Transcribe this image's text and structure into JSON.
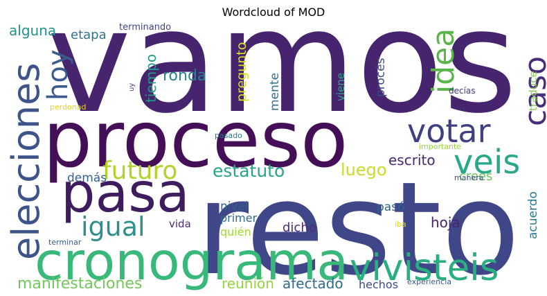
{
  "chart_data": {
    "type": "wordcloud",
    "title": "Wordcloud of MOD",
    "words": [
      {
        "text": "vamos",
        "color": "#46246e"
      },
      {
        "text": "resto",
        "color": "#3f4788"
      },
      {
        "text": "proceso",
        "color": "#440f56"
      },
      {
        "text": "cronograma",
        "color": "#38b97a"
      },
      {
        "text": "pasa",
        "color": "#3e1c5e"
      },
      {
        "text": "elecciones",
        "color": "#3e5389"
      },
      {
        "text": "vivisteis",
        "color": "#29ae80"
      },
      {
        "text": "veis",
        "color": "#28a789"
      },
      {
        "text": "votar",
        "color": "#3f3f82"
      },
      {
        "text": "caso",
        "color": "#472d7b"
      },
      {
        "text": "idea",
        "color": "#5ab54b"
      },
      {
        "text": "hoy",
        "color": "#3b5b8e"
      },
      {
        "text": "futuro",
        "color": "#b2d22c"
      },
      {
        "text": "igual",
        "color": "#2f8f8d"
      },
      {
        "text": "estatuto",
        "color": "#27a585"
      },
      {
        "text": "luego",
        "color": "#c7dd23"
      },
      {
        "text": "manifestaciones",
        "color": "#72c75a"
      },
      {
        "text": "afectado",
        "color": "#2e6b8f"
      },
      {
        "text": "reunión",
        "color": "#91d63d"
      },
      {
        "text": "escrito",
        "color": "#482673"
      },
      {
        "text": "crees",
        "color": "#6bc35c"
      },
      {
        "text": "dicho",
        "color": "#4b2a7a"
      },
      {
        "text": "hoja",
        "color": "#482172"
      },
      {
        "text": "nivel",
        "color": "#33608d"
      },
      {
        "text": "primer",
        "color": "#31688e"
      },
      {
        "text": "quién",
        "color": "#a5d639"
      },
      {
        "text": "pasó",
        "color": "#34618d"
      },
      {
        "text": "acuerdo",
        "color": "#2a788e"
      },
      {
        "text": "hechos",
        "color": "#3c4a88"
      },
      {
        "text": "vida",
        "color": "#472a79"
      },
      {
        "text": "demás",
        "color": "#34608d"
      },
      {
        "text": "alguna",
        "color": "#21918c"
      },
      {
        "text": "etapa",
        "color": "#31718e"
      },
      {
        "text": "ronda",
        "color": "#27848e"
      },
      {
        "text": "tiempo",
        "color": "#229c87"
      },
      {
        "text": "pregunto",
        "color": "#cfe21c"
      },
      {
        "text": "mente",
        "color": "#2e6f8e"
      },
      {
        "text": "procés",
        "color": "#3d4d8a"
      },
      {
        "text": "viene",
        "color": "#30a786"
      },
      {
        "text": "traduce",
        "color": "#83cb54"
      },
      {
        "text": "terminando",
        "color": "#414488"
      },
      {
        "text": "decías",
        "color": "#453781"
      },
      {
        "text": "importante",
        "color": "#96d63a"
      },
      {
        "text": "pasado",
        "color": "#2b758e"
      },
      {
        "text": "manera",
        "color": "#3d4e8a"
      },
      {
        "text": "iba",
        "color": "#ead21f"
      },
      {
        "text": "perdonad",
        "color": "#e3d51a"
      },
      {
        "text": "terminar",
        "color": "#3b5a8c"
      },
      {
        "text": "experiencia",
        "color": "#3a5a8c"
      },
      {
        "text": "uy",
        "color": "#43388a"
      }
    ]
  }
}
